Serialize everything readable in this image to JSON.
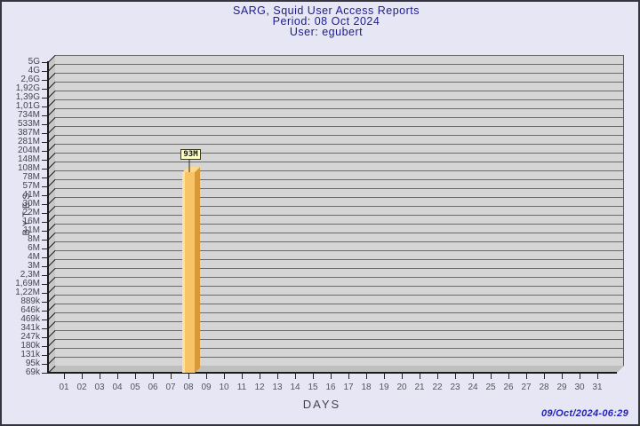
{
  "header": {
    "title": "SARG, Squid User Access Reports",
    "period": "Period: 08 Oct 2024",
    "user": "User: egubert"
  },
  "footer": {
    "generated": "09/Oct/2024-06:29"
  },
  "chart_data": {
    "type": "bar",
    "title": "SARG, Squid User Access Reports",
    "subtitle": "Period: 08 Oct 2024",
    "user_line": "User: egubert",
    "xlabel": "DAYS",
    "ylabel": "BYTES",
    "yscale": "log",
    "grid": true,
    "legend": null,
    "categories": [
      "01",
      "02",
      "03",
      "04",
      "05",
      "06",
      "07",
      "08",
      "09",
      "10",
      "11",
      "12",
      "13",
      "14",
      "15",
      "16",
      "17",
      "18",
      "19",
      "20",
      "21",
      "22",
      "23",
      "24",
      "25",
      "26",
      "27",
      "28",
      "29",
      "30",
      "31"
    ],
    "values_mb": [
      0,
      0,
      0,
      0,
      0,
      0,
      0,
      93,
      0,
      0,
      0,
      0,
      0,
      0,
      0,
      0,
      0,
      0,
      0,
      0,
      0,
      0,
      0,
      0,
      0,
      0,
      0,
      0,
      0,
      0,
      0
    ],
    "bars": [
      {
        "day": "08",
        "value_label": "93M"
      }
    ],
    "yaxis_labels": [
      "5G",
      "4G",
      "2,6G",
      "1,92G",
      "1,39G",
      "1,01G",
      "734M",
      "533M",
      "387M",
      "281M",
      "204M",
      "148M",
      "108M",
      "78M",
      "57M",
      "41M",
      "30M",
      "22M",
      "16M",
      "11M",
      "8M",
      "6M",
      "4M",
      "3M",
      "2,3M",
      "1,69M",
      "1,22M",
      "889k",
      "646k",
      "469k",
      "341k",
      "247k",
      "180k",
      "131k",
      "95k",
      "69k"
    ],
    "ylim": [
      "69k",
      "5G"
    ]
  },
  "colors": {
    "background": "#e6e6f5",
    "border": "#36363e",
    "plot_wall": "#d5d5d5",
    "plot_side_wall": "#c6c6c6",
    "plot_floor": "#bfbfbf",
    "gridline": "#6a6a6a",
    "axis": "#1a1a1a",
    "bar_front": "#f9c466",
    "bar_highlight": "#fce1a2",
    "bar_side": "#d89a38",
    "bar_top": "#fbd98f",
    "value_box_bg": "#ffffc8",
    "value_box_border": "#3c3c1e",
    "title_text": "#1c1c8e",
    "tick_text": "#45454d",
    "timestamp_text": "#2323b4"
  }
}
